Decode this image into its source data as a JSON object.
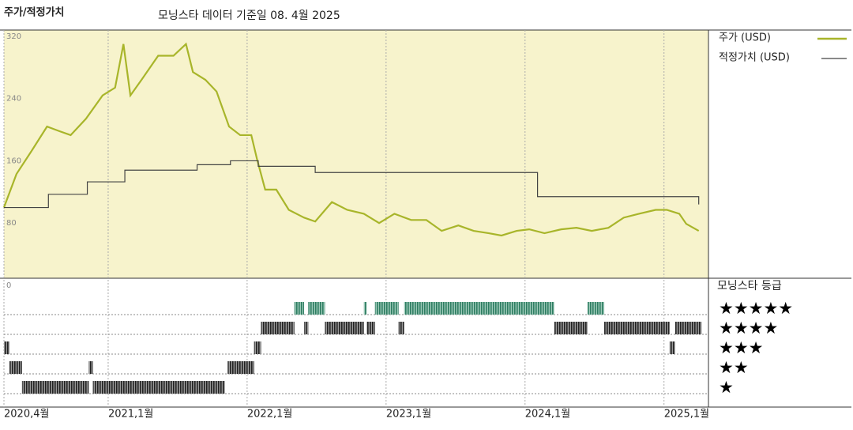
{
  "chart_data": {
    "type": "line",
    "title": "주가/적정가치",
    "subtitle": "모닝스타 데이터 기준일 08. 4월 2025",
    "xlim": [
      2020.25,
      2025.32
    ],
    "xticks": [
      {
        "value": 2020.25,
        "label": "2020,4월"
      },
      {
        "value": 2021,
        "label": "2021,1월"
      },
      {
        "value": 2022,
        "label": "2022,1월"
      },
      {
        "value": 2023,
        "label": "2023,1월"
      },
      {
        "value": 2024,
        "label": "2024,1월"
      },
      {
        "value": 2025,
        "label": "2025,1월"
      }
    ],
    "ylim": [
      0,
      330
    ],
    "yticks": [
      0,
      80,
      160,
      240,
      320
    ],
    "series": [
      {
        "name": "주가 (USD)",
        "color": "#a8b52a",
        "step": false,
        "x": [
          2020.25,
          2020.34,
          2020.45,
          2020.56,
          2020.65,
          2020.73,
          2020.84,
          2020.96,
          2021.05,
          2021.11,
          2021.16,
          2021.24,
          2021.36,
          2021.47,
          2021.56,
          2021.61,
          2021.7,
          2021.78,
          2021.87,
          2021.95,
          2022.03,
          2022.07,
          2022.13,
          2022.21,
          2022.3,
          2022.41,
          2022.49,
          2022.61,
          2022.72,
          2022.84,
          2022.95,
          2023.06,
          2023.18,
          2023.29,
          2023.4,
          2023.52,
          2023.63,
          2023.74,
          2023.83,
          2023.94,
          2024.03,
          2024.14,
          2024.26,
          2024.37,
          2024.48,
          2024.6,
          2024.71,
          2024.82,
          2024.94,
          2025.02,
          2025.11,
          2025.16,
          2025.25
        ],
        "values": [
          102,
          145,
          175,
          206,
          200,
          195,
          216,
          246,
          256,
          312,
          246,
          266,
          297,
          297,
          312,
          276,
          266,
          251,
          206,
          195,
          195,
          165,
          125,
          125,
          99,
          89,
          84,
          109,
          99,
          94,
          82,
          94,
          86,
          86,
          72,
          79,
          72,
          69,
          66,
          72,
          74,
          69,
          74,
          76,
          72,
          76,
          89,
          94,
          99,
          99,
          94,
          81,
          72
        ]
      },
      {
        "name": "적정가치 (USD)",
        "color": "#444444",
        "step": true,
        "x": [
          2020.25,
          2020.57,
          2020.85,
          2021.12,
          2021.64,
          2021.88,
          2022.08,
          2022.49,
          2024.09,
          2025.24,
          2025.25
        ],
        "values": [
          102,
          119,
          135,
          150,
          157,
          162,
          155,
          147,
          116,
          116,
          106
        ]
      }
    ],
    "rating_title": "모닝스타 등급",
    "star_labels": [
      "★★★★★",
      "★★★★",
      "★★★",
      "★★",
      "★"
    ],
    "ratings": [
      {
        "start": 2020.25,
        "end": 2020.29,
        "stars": 3
      },
      {
        "start": 2020.29,
        "end": 2020.38,
        "stars": 2
      },
      {
        "start": 2020.38,
        "end": 2020.86,
        "stars": 1
      },
      {
        "start": 2020.86,
        "end": 2020.89,
        "stars": 2
      },
      {
        "start": 2020.89,
        "end": 2021.84,
        "stars": 1
      },
      {
        "start": 2021.86,
        "end": 2022.05,
        "stars": 2
      },
      {
        "start": 2022.05,
        "end": 2022.1,
        "stars": 3
      },
      {
        "start": 2022.1,
        "end": 2022.34,
        "stars": 4
      },
      {
        "start": 2022.34,
        "end": 2022.41,
        "stars": 5
      },
      {
        "start": 2022.41,
        "end": 2022.44,
        "stars": 4
      },
      {
        "start": 2022.44,
        "end": 2022.56,
        "stars": 5
      },
      {
        "start": 2022.56,
        "end": 2022.84,
        "stars": 4
      },
      {
        "start": 2022.84,
        "end": 2022.86,
        "stars": 5
      },
      {
        "start": 2022.86,
        "end": 2022.92,
        "stars": 4
      },
      {
        "start": 2022.92,
        "end": 2023.09,
        "stars": 5
      },
      {
        "start": 2023.09,
        "end": 2023.13,
        "stars": 4
      },
      {
        "start": 2023.13,
        "end": 2024.21,
        "stars": 5
      },
      {
        "start": 2024.21,
        "end": 2024.45,
        "stars": 4
      },
      {
        "start": 2024.45,
        "end": 2024.57,
        "stars": 5
      },
      {
        "start": 2024.57,
        "end": 2025.04,
        "stars": 4
      },
      {
        "start": 2025.04,
        "end": 2025.08,
        "stars": 3
      },
      {
        "start": 2025.08,
        "end": 2025.27,
        "stars": 4
      }
    ]
  }
}
